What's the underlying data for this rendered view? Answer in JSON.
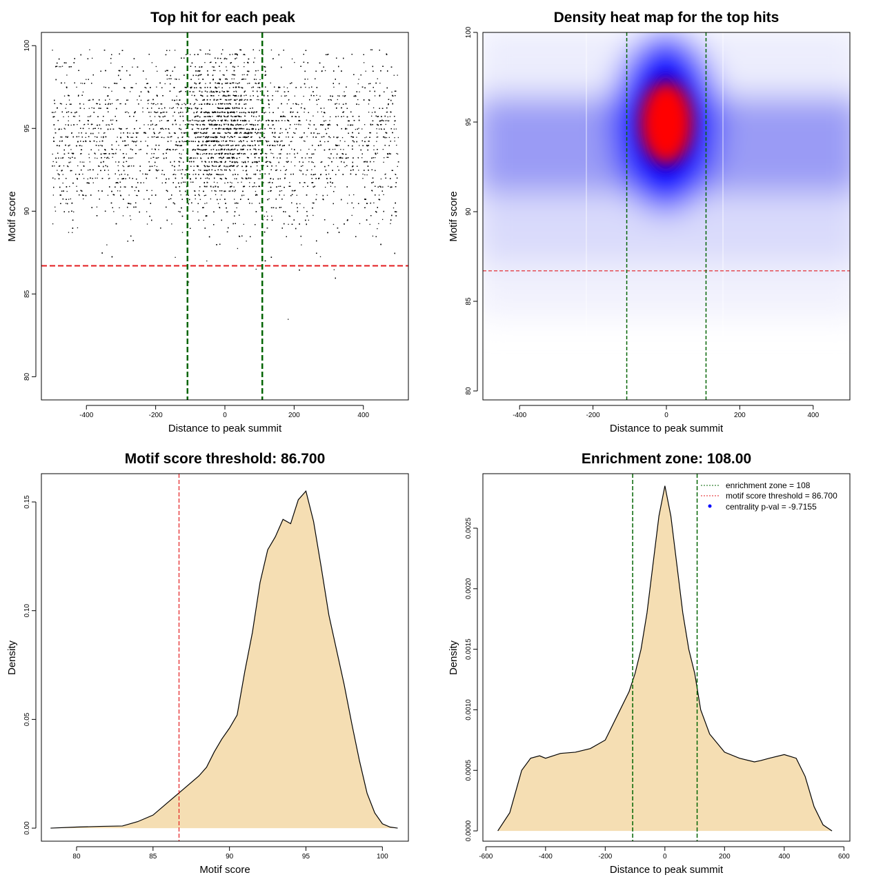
{
  "panels": {
    "scatter": {
      "title": "Top hit for each peak",
      "xlabel": "Distance to peak summit",
      "ylabel": "Motif score"
    },
    "heatmap": {
      "title": "Density heat map for the top hits",
      "xlabel": "Distance to peak summit",
      "ylabel": "Motif score"
    },
    "score_density": {
      "title": "Motif score threshold: 86.700",
      "xlabel": "Motif score",
      "ylabel": "Density"
    },
    "distance_density": {
      "title": "Enrichment zone: 108.00",
      "xlabel": "Distance to peak summit",
      "ylabel": "Density"
    }
  },
  "legend": {
    "enrichment": "enrichment zone = 108",
    "threshold": "motif score threshold = 86.700",
    "pval": "centrality p-val = -9.7155"
  },
  "colors": {
    "green_line": "#006400",
    "red_line": "#e31a1c",
    "fill": "#f5deb3",
    "heat_blue": "#0000ff",
    "heat_red": "#ff0000",
    "points": "#000000"
  },
  "chart_data": [
    {
      "type": "scatter",
      "title": "Top hit for each peak",
      "xlabel": "Distance to peak summit",
      "ylabel": "Motif score",
      "xlim": [
        -530,
        530
      ],
      "ylim": [
        78.6,
        100.8
      ],
      "xticks": [
        -400,
        -200,
        0,
        200,
        400
      ],
      "xtick_labels": [
        "-400",
        "-200",
        "0",
        "200",
        "400"
      ],
      "yticks": [
        80,
        85,
        90,
        95,
        100
      ],
      "ytick_labels": [
        "80",
        "85",
        "90",
        "95",
        "100"
      ],
      "threshold_y": 86.7,
      "zone_x": [
        -108,
        108
      ],
      "distribution": {
        "x_range": [
          -500,
          500
        ],
        "center_sd": 65,
        "score_peak": 95,
        "score_sd": 2.6,
        "n_points": 11000
      }
    },
    {
      "type": "heatmap",
      "title": "Density heat map for the top hits",
      "xlabel": "Distance to peak summit",
      "ylabel": "Motif score",
      "xlim": [
        -500,
        500
      ],
      "ylim": [
        79.5,
        100
      ],
      "xticks": [
        -400,
        -200,
        0,
        200,
        400
      ],
      "xtick_labels": [
        "-400",
        "-200",
        "0",
        "200",
        "400"
      ],
      "yticks": [
        80,
        85,
        90,
        95,
        100
      ],
      "ytick_labels": [
        "80",
        "85",
        "90",
        "95",
        "100"
      ],
      "threshold_y": 86.7,
      "zone_x": [
        -108,
        108
      ],
      "hotspot": {
        "x": 0,
        "y": 95
      }
    },
    {
      "type": "area",
      "title": "Motif score threshold: 86.700",
      "xlabel": "Motif score",
      "ylabel": "Density",
      "xlim": [
        77.7,
        101.7
      ],
      "ylim": [
        -0.006,
        0.163
      ],
      "xticks": [
        80,
        85,
        90,
        95,
        100
      ],
      "xtick_labels": [
        "80",
        "85",
        "90",
        "95",
        "100"
      ],
      "yticks": [
        0,
        0.05,
        0.1,
        0.15
      ],
      "ytick_labels": [
        "0.00",
        "0.05",
        "0.10",
        "0.15"
      ],
      "vline": 86.7,
      "x": [
        78.3,
        80,
        81.5,
        83,
        84,
        85,
        86,
        87,
        88,
        88.5,
        89,
        89.5,
        90,
        90.5,
        91,
        91.5,
        92,
        92.5,
        93,
        93.5,
        94,
        94.5,
        95,
        95.5,
        96,
        96.5,
        97,
        97.5,
        98,
        98.5,
        99,
        99.5,
        100,
        100.5,
        101
      ],
      "y": [
        0,
        0.0005,
        0.0008,
        0.001,
        0.003,
        0.006,
        0.012,
        0.018,
        0.024,
        0.028,
        0.035,
        0.041,
        0.046,
        0.052,
        0.072,
        0.09,
        0.113,
        0.128,
        0.134,
        0.142,
        0.14,
        0.151,
        0.155,
        0.141,
        0.12,
        0.098,
        0.082,
        0.066,
        0.048,
        0.031,
        0.016,
        0.007,
        0.002,
        0.0005,
        0
      ]
    },
    {
      "type": "area",
      "title": "Enrichment zone: 108.00",
      "xlabel": "Distance to peak summit",
      "ylabel": "Density",
      "xlim": [
        -610,
        620
      ],
      "ylim": [
        -8.5e-05,
        0.00295
      ],
      "xticks": [
        -600,
        -400,
        -200,
        0,
        200,
        400,
        600
      ],
      "xtick_labels": [
        "-600",
        "-400",
        "-200",
        "0",
        "200",
        "400",
        "600"
      ],
      "yticks": [
        0,
        0.0005,
        0.001,
        0.0015,
        0.002,
        0.0025
      ],
      "ytick_labels": [
        "0.0000",
        "0.0005",
        "0.0010",
        "0.0015",
        "0.0020",
        "0.0025"
      ],
      "vlines": [
        -108,
        108
      ],
      "x": [
        -560,
        -520,
        -480,
        -450,
        -420,
        -400,
        -350,
        -300,
        -250,
        -200,
        -150,
        -120,
        -100,
        -80,
        -60,
        -40,
        -20,
        0,
        20,
        40,
        60,
        80,
        100,
        120,
        150,
        200,
        250,
        300,
        320,
        350,
        400,
        440,
        470,
        500,
        530,
        560
      ],
      "y": [
        0,
        0.00015,
        0.0005,
        0.0006,
        0.00062,
        0.0006,
        0.00064,
        0.00065,
        0.00068,
        0.00075,
        0.001,
        0.00115,
        0.0013,
        0.0015,
        0.0018,
        0.0022,
        0.0026,
        0.00285,
        0.0026,
        0.0022,
        0.0018,
        0.0015,
        0.0013,
        0.001,
        0.0008,
        0.00065,
        0.0006,
        0.00057,
        0.00058,
        0.0006,
        0.00063,
        0.0006,
        0.00045,
        0.0002,
        5e-05,
        0
      ]
    }
  ]
}
